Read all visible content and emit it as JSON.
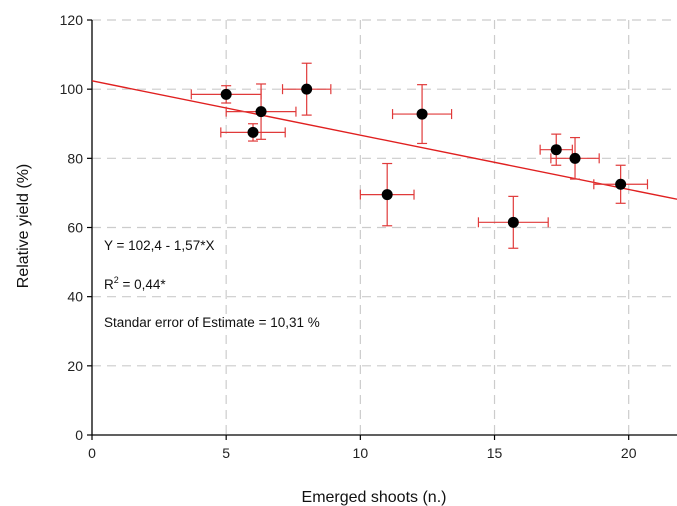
{
  "chart_data": {
    "type": "scatter",
    "xlabel": "Emerged shoots (n.)",
    "ylabel": "Relative yield (%)",
    "xlim": [
      0,
      21.8
    ],
    "ylim": [
      0,
      120
    ],
    "x_ticks": [
      "0",
      "5",
      "10",
      "15",
      "20"
    ],
    "y_ticks": [
      "0",
      "20",
      "40",
      "60",
      "80",
      "100",
      "120"
    ],
    "grid": "dashed",
    "points": [
      {
        "x": 5.0,
        "y": 98.5,
        "xerr": 1.3,
        "yerr": 2.5
      },
      {
        "x": 6.3,
        "y": 93.5,
        "xerr": 1.3,
        "yerr": 8.0
      },
      {
        "x": 6.0,
        "y": 87.5,
        "xerr": 1.2,
        "yerr": 2.5
      },
      {
        "x": 8.0,
        "y": 100.0,
        "xerr": 0.9,
        "yerr": 7.5
      },
      {
        "x": 12.3,
        "y": 92.8,
        "xerr": 1.1,
        "yerr": 8.5
      },
      {
        "x": 11.0,
        "y": 69.5,
        "xerr": 1.0,
        "yerr": 9.0
      },
      {
        "x": 15.7,
        "y": 61.5,
        "xerr": 1.3,
        "yerr": 7.5
      },
      {
        "x": 17.3,
        "y": 82.5,
        "xerr": 0.6,
        "yerr": 4.5
      },
      {
        "x": 18.0,
        "y": 80.0,
        "xerr": 0.9,
        "yerr": 6.0
      },
      {
        "x": 19.7,
        "y": 72.5,
        "xerr": 1.0,
        "yerr": 5.5
      }
    ],
    "regression": {
      "intercept": 102.4,
      "slope": -1.57
    },
    "annotations": {
      "equation": "Y = 102,4 - 1,57*X",
      "r2_prefix": "R",
      "r2_sup": "2",
      "r2_suffix": " = 0,44*",
      "stderr": "Standar error of Estimate = 10,31 %"
    },
    "colors": {
      "points": "#000000",
      "errorbars": "#e03a3a",
      "line": "#e02020",
      "grid": "#cccccc"
    }
  }
}
